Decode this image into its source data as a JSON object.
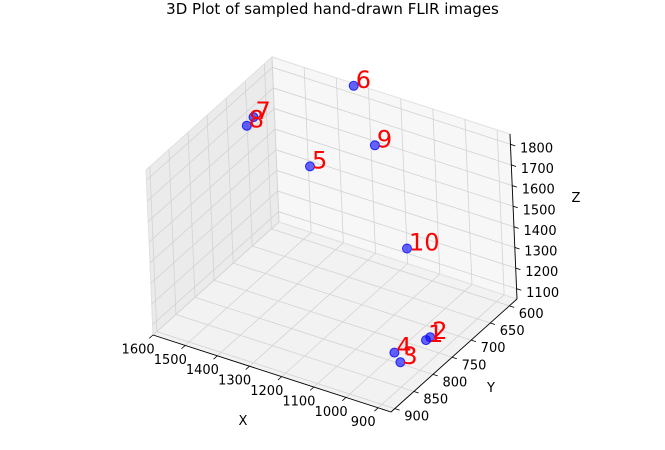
{
  "chart_data": {
    "type": "scatter",
    "title": "3D Plot of sampled hand-drawn FLIR images",
    "xlabel": "X",
    "ylabel": "Y",
    "zlabel": "Z",
    "xlim": [
      1600,
      860
    ],
    "ylim": [
      580,
      910
    ],
    "zlim": [
      1050,
      1850
    ],
    "xticks": [
      "1600",
      "1500",
      "1400",
      "1300",
      "1200",
      "1100",
      "1000",
      "900"
    ],
    "yticks": [
      "600",
      "650",
      "700",
      "750",
      "800",
      "850",
      "900"
    ],
    "zticks": [
      "1100",
      "1200",
      "1300",
      "1400",
      "1500",
      "1600",
      "1700",
      "1800"
    ],
    "marker_color": "#0000ff",
    "label_color": "#ff0000",
    "points": [
      {
        "label": "1",
        "x": 925,
        "y": 762,
        "z": 1120
      },
      {
        "label": "2",
        "x": 920,
        "y": 755,
        "z": 1125
      },
      {
        "label": "3",
        "x": 930,
        "y": 825,
        "z": 1115
      },
      {
        "label": "4",
        "x": 960,
        "y": 815,
        "z": 1130
      },
      {
        "label": "5",
        "x": 1420,
        "y": 640,
        "z": 1510
      },
      {
        "label": "6",
        "x": 1340,
        "y": 585,
        "z": 1850
      },
      {
        "label": "7",
        "x": 1560,
        "y": 665,
        "z": 1720
      },
      {
        "label": "8",
        "x": 1570,
        "y": 675,
        "z": 1690
      },
      {
        "label": "9",
        "x": 1200,
        "y": 650,
        "z": 1740
      },
      {
        "label": "10",
        "x": 1000,
        "y": 740,
        "z": 1490
      }
    ]
  }
}
